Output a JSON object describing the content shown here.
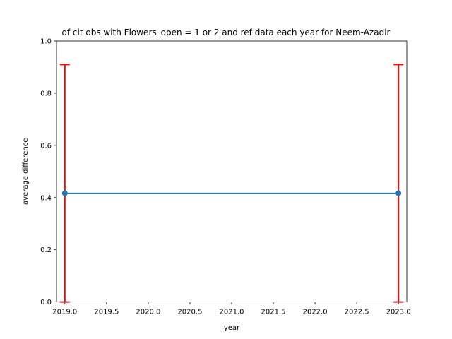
{
  "chart_data": {
    "type": "line",
    "title": "of cit obs with Flowers_open = 1 or 2 and ref data each year for Neem-Azadir",
    "xlabel": "year",
    "ylabel": "average difference",
    "xlim": [
      2018.9,
      2023.1
    ],
    "ylim": [
      0.0,
      1.0
    ],
    "xticks": [
      2019.0,
      2019.5,
      2020.0,
      2020.5,
      2021.0,
      2021.5,
      2022.0,
      2022.5,
      2023.0
    ],
    "xtick_labels": [
      "2019.0",
      "2019.5",
      "2020.0",
      "2020.5",
      "2021.0",
      "2021.5",
      "2022.0",
      "2022.5",
      "2023.0"
    ],
    "yticks": [
      0.0,
      0.2,
      0.4,
      0.6,
      0.8,
      1.0
    ],
    "ytick_labels": [
      "0.0",
      "0.2",
      "0.4",
      "0.6",
      "0.8",
      "1.0"
    ],
    "grid": false,
    "series": [
      {
        "x": [
          2019,
          2023
        ],
        "y": [
          0.4167,
          0.4167
        ],
        "error_upper": [
          0.9097,
          0.9097
        ],
        "error_lower": [
          0.0,
          0.0
        ],
        "color": "#1f77b4",
        "error_color": "#ff0000"
      }
    ]
  }
}
